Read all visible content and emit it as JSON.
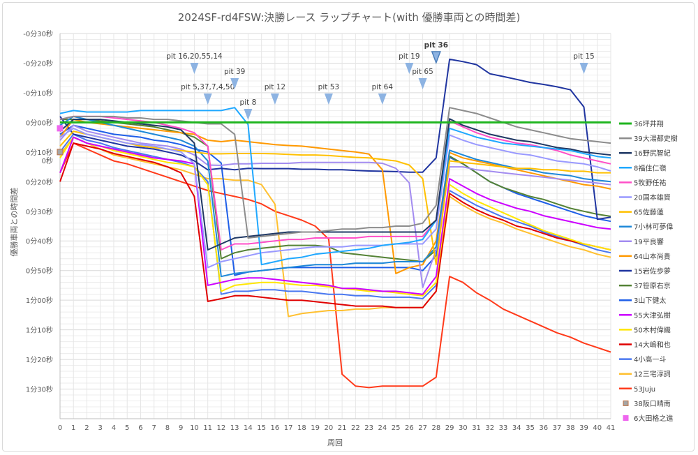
{
  "chart_data": {
    "type": "line",
    "title": "2024SF-rd4FSW:決勝レース ラップチャート(with 優勝車両との時間差)",
    "xlabel": "周回",
    "ylabel": "優勝車両との時間差",
    "x": [
      0,
      1,
      2,
      3,
      4,
      5,
      6,
      7,
      8,
      9,
      10,
      11,
      12,
      13,
      14,
      15,
      16,
      17,
      18,
      19,
      20,
      21,
      22,
      23,
      24,
      25,
      26,
      27,
      28,
      29,
      30,
      31,
      32,
      33,
      34,
      35,
      36,
      37,
      38,
      39,
      40,
      41
    ],
    "xlim": [
      0,
      41
    ],
    "ylim": [
      -30,
      100
    ],
    "y_reversed": true,
    "y_unit": "seconds",
    "y_ticks": [
      -30,
      -20,
      -10,
      0,
      10,
      20,
      30,
      40,
      50,
      60,
      70,
      80,
      90
    ],
    "y_tick_labels": [
      "-0分30秒",
      "-0分20秒",
      "-0分10秒",
      "0分00秒",
      "0分10秒",
      "0分20秒",
      "0分30秒",
      "0分40秒",
      "0分50秒",
      "1分00秒",
      "1分10秒",
      "1分20秒",
      "1分30秒"
    ],
    "y_overlap_label": "0秒",
    "grid": true,
    "legend_placement": "right",
    "series": [
      {
        "name": "36坪井翔",
        "color": "#1fb51f",
        "values": [
          0,
          0,
          0,
          0,
          0,
          0,
          0,
          0,
          0,
          0,
          0,
          0,
          0,
          0,
          0,
          0,
          0,
          0,
          0,
          0,
          0,
          0,
          0,
          0,
          0,
          0,
          0,
          0,
          0,
          0,
          0,
          0,
          0,
          0,
          0,
          0,
          0,
          0,
          0,
          0,
          0,
          0
        ]
      },
      {
        "name": "39大湯都史樹",
        "color": "#8c8c8c",
        "values": [
          -1,
          -2,
          -2,
          -2,
          -2,
          -1.5,
          -1.5,
          -1,
          -1,
          -0.5,
          0,
          0.5,
          0.5,
          4,
          39,
          38.5,
          38,
          37.5,
          37,
          37,
          36.5,
          36,
          36,
          35.5,
          35.5,
          35,
          35,
          34,
          28,
          -5,
          -4,
          -3,
          -1.5,
          0,
          1.5,
          2.5,
          3.5,
          4.5,
          5.5,
          6,
          6.5,
          7
        ]
      },
      {
        "name": "16野尻智紀",
        "color": "#1f3864",
        "values": [
          3,
          -1,
          -1,
          -1,
          -0.5,
          0,
          0.5,
          1,
          1.5,
          2.5,
          7,
          43,
          41,
          39,
          38.5,
          38,
          37.5,
          37,
          37,
          37,
          37,
          37,
          37,
          37,
          37,
          37,
          37,
          37,
          33,
          -1.2,
          1,
          2.5,
          4,
          5,
          6,
          6.5,
          7.5,
          8.5,
          9,
          10,
          10.5,
          11
        ]
      },
      {
        "name": "8福住仁嶺",
        "color": "#1fa8ff",
        "values": [
          -3,
          -4,
          -3.5,
          -3.5,
          -3.5,
          -3.5,
          -4,
          -4,
          -4,
          -4,
          -4,
          -4,
          -4,
          -5,
          0.7,
          48,
          47,
          46,
          45.5,
          44.5,
          44,
          43.5,
          43,
          42.5,
          41.5,
          41,
          40.5,
          39.5,
          33,
          2,
          3.5,
          5,
          6,
          7,
          7.5,
          8,
          8.5,
          9,
          9.5,
          10.5,
          11.5,
          12
        ]
      },
      {
        "name": "5牧野任祐",
        "color": "#ff4fc8",
        "values": [
          -1,
          -2,
          -2,
          -2,
          -1.5,
          -1,
          -0.5,
          0,
          1,
          2,
          3.5,
          8,
          43,
          41,
          41,
          40.5,
          40,
          39.5,
          39.5,
          39,
          39,
          39,
          39,
          38.5,
          38.5,
          38.5,
          38.5,
          38.5,
          33,
          -0.5,
          1.5,
          3.5,
          5,
          6,
          7,
          7.5,
          8.5,
          9.5,
          11,
          12,
          13,
          14
        ]
      },
      {
        "name": "20国本雄資",
        "color": "#9999ff",
        "values": [
          5,
          2,
          4,
          5,
          6,
          7,
          7.5,
          8,
          9,
          10,
          14,
          49,
          47,
          46,
          45,
          44,
          43.5,
          43,
          42.5,
          42,
          42,
          42,
          41.5,
          41.5,
          41.5,
          41,
          41,
          41,
          36,
          4.3,
          6,
          7.5,
          8.5,
          9.5,
          10.5,
          11,
          12,
          13,
          13.5,
          14,
          15,
          16.4
        ]
      },
      {
        "name": "65佐藤蓮",
        "color": "#ffc000",
        "values": [
          8,
          3,
          4,
          5,
          6,
          7,
          8,
          8.5,
          9,
          9.5,
          10,
          10.6,
          10.6,
          10.5,
          10.5,
          10.5,
          10.6,
          10.8,
          11,
          11,
          11.2,
          11.5,
          11.8,
          12,
          12.5,
          13,
          14.4,
          19,
          48,
          13,
          13.5,
          14,
          14.5,
          15,
          15.5,
          15.5,
          16,
          16,
          16.5,
          16.5,
          17,
          17
        ]
      },
      {
        "name": "7小林可夢偉",
        "color": "#1e88d8",
        "values": [
          1,
          -2,
          -1,
          0,
          1,
          2,
          3,
          4,
          5,
          6,
          8,
          13,
          52,
          51,
          50.5,
          50,
          49.5,
          49,
          48.5,
          48,
          48,
          48,
          47.5,
          47.5,
          47.5,
          47,
          47,
          47,
          42,
          9.4,
          11,
          12.5,
          13.5,
          14.5,
          15.5,
          16,
          17,
          17.5,
          18,
          19,
          19.5,
          20
        ]
      },
      {
        "name": "19平良響",
        "color": "#a38cf0",
        "values": [
          6,
          1,
          3,
          4,
          5,
          6,
          7,
          7.5,
          8,
          9,
          11,
          14.4,
          14.5,
          14,
          14,
          13.8,
          13.8,
          13.8,
          13.5,
          13.5,
          13.5,
          13.5,
          13.5,
          13.5,
          13.8,
          15.5,
          20.4,
          55.7,
          43,
          15,
          15,
          16,
          16.5,
          17,
          17.5,
          18,
          18.5,
          19,
          19.5,
          20,
          20.5,
          21
        ]
      },
      {
        "name": "64山本尚貴",
        "color": "#ff9900",
        "values": [
          5,
          -1,
          0,
          0.5,
          1,
          1.5,
          2,
          2.5,
          3,
          3.5,
          4,
          6,
          6.5,
          6,
          6.5,
          7,
          7.5,
          7.8,
          8,
          8.5,
          9,
          9.5,
          10,
          10.7,
          16,
          51,
          49,
          48,
          40,
          10.2,
          12,
          13,
          14,
          15,
          16,
          17,
          18,
          19,
          20,
          21,
          21.5,
          22.5
        ]
      },
      {
        "name": "15岩佐歩夢",
        "color": "#2035a0",
        "values": [
          -2,
          4,
          5,
          6,
          7,
          8,
          8.5,
          9,
          10,
          11,
          13,
          16,
          15.5,
          16,
          15.5,
          15.6,
          15.6,
          15.6,
          15.8,
          15.8,
          16,
          16,
          16.2,
          16.4,
          16.5,
          16.6,
          16.8,
          16.8,
          12,
          -21.3,
          -20.5,
          -19.5,
          -16.4,
          -15.5,
          -14.5,
          -13.5,
          -12.8,
          -12,
          -11,
          -5.2,
          32.7,
          32
        ]
      },
      {
        "name": "37笹原右京",
        "color": "#548235",
        "values": [
          -1,
          -1,
          -1,
          -0.5,
          0,
          0.5,
          1,
          1.5,
          2.5,
          3.5,
          5,
          8,
          46,
          44,
          43,
          42.5,
          42,
          41.5,
          41.5,
          41.5,
          42,
          44,
          44.5,
          45,
          45.5,
          46,
          46.5,
          47,
          43,
          11.4,
          14,
          17,
          20,
          22,
          23.5,
          25,
          26,
          27.5,
          29,
          30,
          31,
          31.7
        ]
      },
      {
        "name": "3山下健太",
        "color": "#1f5fe8",
        "values": [
          4,
          1,
          2,
          3,
          4,
          4.5,
          5,
          6,
          6.5,
          7.5,
          9,
          10,
          13.7,
          51.6,
          50.5,
          50,
          49.5,
          49,
          49,
          49,
          49,
          49,
          49,
          49,
          49,
          49,
          49,
          50,
          45,
          11.8,
          14,
          17,
          20,
          22,
          24,
          25.5,
          27,
          28.5,
          30,
          31.5,
          32.5,
          33.4
        ]
      },
      {
        "name": "55大津弘樹",
        "color": "#cc00ff",
        "values": [
          17,
          5,
          7,
          8,
          9,
          10,
          11,
          12,
          12.5,
          13,
          14,
          55,
          54,
          53,
          52.5,
          52.5,
          53,
          53.5,
          54,
          54.5,
          55,
          56,
          56,
          56.5,
          57,
          57,
          57.5,
          58,
          52,
          19,
          21.5,
          24,
          26,
          27.5,
          29,
          30,
          31.5,
          32.5,
          33.5,
          34.5,
          35.5,
          36
        ]
      },
      {
        "name": "50木村偉織",
        "color": "#ffe600",
        "values": [
          12,
          5,
          7,
          8,
          9.5,
          10.5,
          11.5,
          12.5,
          13.5,
          14,
          15,
          21,
          57,
          55,
          54.5,
          54,
          54,
          54.5,
          55,
          55,
          55.5,
          56,
          56.5,
          57,
          57,
          57.5,
          58,
          58.5,
          54,
          21,
          24,
          26.5,
          28.5,
          30.5,
          32.5,
          34.5,
          36.5,
          38,
          39.5,
          41,
          42,
          43
        ]
      },
      {
        "name": "14大嶋和也",
        "color": "#e00000",
        "values": [
          20,
          7,
          8,
          9,
          10.5,
          11.5,
          12.5,
          13.5,
          15,
          17,
          25,
          60.4,
          59.5,
          58.5,
          58.5,
          59,
          59.5,
          60,
          60,
          60.5,
          61,
          61.5,
          62,
          62,
          62,
          62.5,
          62.5,
          62.5,
          57,
          24,
          27,
          29.5,
          31.5,
          33,
          35,
          36,
          37.5,
          39,
          40,
          41,
          42,
          43
        ]
      },
      {
        "name": "4小高一斗",
        "color": "#4a78f0",
        "values": [
          10,
          4,
          6,
          7,
          8.5,
          9.5,
          10.5,
          11.5,
          12.5,
          13.5,
          15,
          20,
          58,
          57,
          57,
          56.5,
          56.5,
          57,
          57,
          57.5,
          58,
          58,
          58.5,
          58.5,
          59,
          59,
          59,
          59.5,
          55,
          23,
          25.5,
          28,
          30,
          32,
          33.5,
          35,
          37,
          38.5,
          40,
          41.5,
          43,
          44
        ]
      },
      {
        "name": "12三宅淳詞",
        "color": "#ffc030",
        "values": [
          11,
          5,
          7,
          9,
          11,
          12,
          13,
          14,
          15,
          16,
          17.5,
          19,
          19,
          19.5,
          19.5,
          21,
          27.6,
          65.5,
          64.5,
          64,
          63.5,
          63.5,
          63,
          63,
          62.5,
          62.5,
          62.5,
          62.5,
          57,
          25,
          28,
          30.5,
          32.5,
          34,
          36,
          37.5,
          39,
          40.5,
          42,
          43,
          44.5,
          45.5
        ]
      },
      {
        "name": "53Juju",
        "color": "#ff3a1a",
        "values": [
          17,
          7,
          9,
          11,
          13,
          14,
          15.5,
          17,
          18.5,
          20,
          21.5,
          23,
          24,
          25,
          26,
          27.5,
          30,
          31.5,
          33,
          35,
          39.4,
          85,
          89,
          89.5,
          89,
          89,
          89,
          89,
          86,
          52,
          54,
          57.5,
          60,
          63,
          65,
          67,
          69,
          71,
          72.5,
          74.5,
          76,
          77.5
        ]
      }
    ],
    "marker_series": [
      {
        "name": "38阪口晴南",
        "color": "#a5a5a5",
        "edge": "#c07040",
        "x": 0,
        "value": 10
      },
      {
        "name": "6大田格之進",
        "color": "#ee66ee",
        "edge": "#ee66ee",
        "x": 0,
        "value": 2
      }
    ],
    "annotations": [
      {
        "text": "pit 16,20,55,14",
        "lap": 10
      },
      {
        "text": "pit 5,37,7,4,50",
        "lap": 11
      },
      {
        "text": "pit 39",
        "lap": 13
      },
      {
        "text": "pit 8",
        "lap": 14
      },
      {
        "text": "pit 12",
        "lap": 16
      },
      {
        "text": "pit 53",
        "lap": 20
      },
      {
        "text": "pit 64",
        "lap": 24
      },
      {
        "text": "pit 19",
        "lap": 26
      },
      {
        "text": "pit 65",
        "lap": 27
      },
      {
        "text": "pit 36",
        "lap": 28,
        "bold": true
      },
      {
        "text": "pit 15",
        "lap": 39
      }
    ]
  }
}
